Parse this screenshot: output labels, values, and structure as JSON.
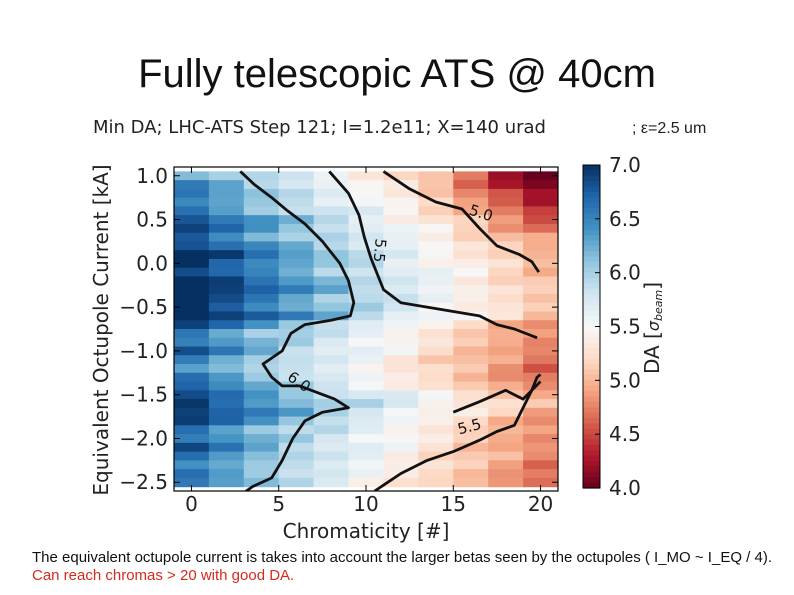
{
  "slide_title": "Fully telescopic ATS @ 40cm",
  "caption": {
    "text": "The equivalent octupole current is takes into account the larger betas seen by the octupoles ( I_MO ~ I_EQ / 4).",
    "highlight": "Can reach chromas > 20 with good DA."
  },
  "chart_data": {
    "type": "heatmap",
    "title": "Min DA; LHC-ATS Step 121; I=1.2e11; X=140 urad",
    "title_suffix": "; ε=2.5 um",
    "xlabel": "Chromaticity [#]",
    "ylabel": "Equivalent Octupole Current [kA]",
    "colorbar_label": "DA [σbeam]",
    "colormap": "RdBu",
    "colormap_stops": [
      "#67001f",
      "#b2182b",
      "#d6604d",
      "#f4a582",
      "#fddbc7",
      "#f7f7f7",
      "#d1e5f0",
      "#92c5de",
      "#4393c3",
      "#2166ac",
      "#053061"
    ],
    "xlim": [
      -1,
      21
    ],
    "ylim": [
      -2.6,
      1.1
    ],
    "xticks": [
      0,
      5,
      10,
      15,
      20
    ],
    "xtick_labels": [
      "0",
      "5",
      "10",
      "15",
      "20"
    ],
    "yticks": [
      1.0,
      0.5,
      0.0,
      -0.5,
      -1.0,
      -1.5,
      -2.0,
      -2.5
    ],
    "ytick_labels": [
      "1.0",
      "0.5",
      "0.0",
      "−0.5",
      "−1.0",
      "−1.5",
      "−2.0",
      "−2.5"
    ],
    "cticks": [
      4.0,
      4.5,
      5.0,
      5.5,
      6.0,
      6.5,
      7.0
    ],
    "ctick_labels": [
      "4.0",
      "4.5",
      "5.0",
      "5.5",
      "6.0",
      "6.5",
      "7.0"
    ],
    "clim": [
      4.0,
      7.0
    ],
    "x_centers": [
      0,
      2,
      4,
      6,
      8,
      10,
      12,
      14,
      16,
      18,
      20
    ],
    "y_centers": [
      1.0,
      0.9,
      0.8,
      0.7,
      0.6,
      0.5,
      0.4,
      0.3,
      0.2,
      0.1,
      0.0,
      -0.1,
      -0.2,
      -0.3,
      -0.4,
      -0.5,
      -0.6,
      -0.7,
      -0.8,
      -0.9,
      -1.0,
      -1.1,
      -1.2,
      -1.3,
      -1.4,
      -1.5,
      -1.6,
      -1.7,
      -1.8,
      -1.9,
      -2.0,
      -2.1,
      -2.2,
      -2.3,
      -2.4,
      -2.5
    ],
    "contours": [
      {
        "level": "5.0",
        "x": [
          15.0,
          16.5,
          18.0,
          19.0,
          19.5,
          19.8,
          20.0
        ],
        "y": [
          -1.7,
          -1.58,
          -1.45,
          -1.55,
          -1.45,
          -1.3,
          -1.27
        ]
      },
      {
        "level": "5.0",
        "x": [
          11.0,
          12.5,
          14.0,
          15.5,
          16.5,
          17.5,
          18.8,
          19.5,
          19.9
        ],
        "y": [
          1.05,
          0.85,
          0.7,
          0.62,
          0.4,
          0.2,
          0.1,
          0.02,
          -0.1
        ]
      },
      {
        "level": "5.5",
        "x": [
          7.9,
          9.0,
          9.6,
          9.9,
          10.3,
          11.0,
          12.0,
          13.5,
          15.0,
          16.5,
          17.5,
          18.5,
          19.8
        ],
        "y": [
          1.05,
          0.8,
          0.55,
          0.3,
          0.05,
          -0.3,
          -0.45,
          -0.5,
          -0.55,
          -0.6,
          -0.7,
          -0.75,
          -0.85
        ]
      },
      {
        "level": "5.5",
        "x": [
          10.5,
          12.0,
          13.5,
          15.0,
          16.5,
          17.5,
          18.5,
          19.0,
          19.5,
          20.0
        ],
        "y": [
          -2.6,
          -2.4,
          -2.25,
          -2.15,
          -2.02,
          -1.92,
          -1.85,
          -1.65,
          -1.45,
          -1.35
        ]
      },
      {
        "level": "6.0",
        "x": [
          2.8,
          3.6,
          4.6,
          5.5,
          6.5,
          7.5,
          8.5,
          9.0,
          9.3,
          9.1,
          8.0,
          6.5,
          5.7,
          5.2,
          4.1,
          4.6,
          5.2,
          6.2,
          8.2,
          9.0,
          7.5,
          6.5,
          5.8,
          5.2,
          4.6,
          3.5,
          2.8
        ],
        "y": [
          1.05,
          0.9,
          0.75,
          0.6,
          0.45,
          0.25,
          0.0,
          -0.2,
          -0.45,
          -0.6,
          -0.65,
          -0.7,
          -0.8,
          -1.0,
          -1.15,
          -1.3,
          -1.4,
          -1.4,
          -1.55,
          -1.65,
          -1.7,
          -1.8,
          -2.0,
          -2.25,
          -2.45,
          -2.55,
          -2.65
        ]
      }
    ]
  }
}
